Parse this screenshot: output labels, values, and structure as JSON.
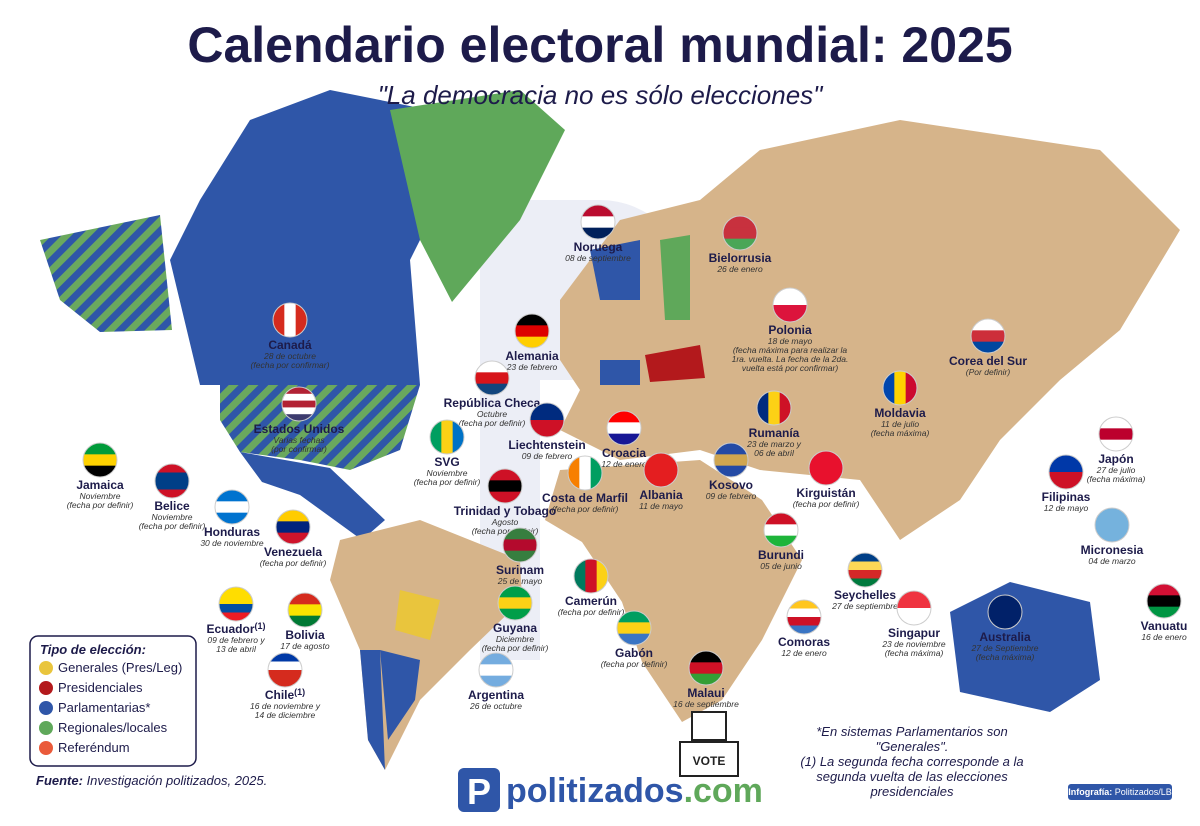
{
  "header": {
    "title": "Calendario electoral mundial: 2025",
    "subtitle": "\"La democracia no es sólo elecciones\""
  },
  "countries": [
    {
      "name": "Noruega",
      "details": [
        "08 de septiembre"
      ]
    },
    {
      "name": "Bielorrusia",
      "details": [
        "26 de enero"
      ]
    },
    {
      "name": "Polonia",
      "details": [
        "18 de mayo",
        "(fecha máxima para realizar la",
        "1ra. vuelta. La fecha de la 2da.",
        "vuelta está por confirmar)"
      ]
    },
    {
      "name": "Alemania",
      "details": [
        "23 de febrero"
      ]
    },
    {
      "name": "República Checa",
      "details": [
        "Octubre",
        "(fecha por definir)"
      ]
    },
    {
      "name": "Canadá",
      "details": [
        "28 de octubre",
        "(fecha por confirmar)"
      ]
    },
    {
      "name": "Estados Unidos",
      "details": [
        "Varias fechas",
        "(por confirmar)"
      ]
    },
    {
      "name": "Corea del Sur",
      "details": [
        "(Por definir)"
      ]
    },
    {
      "name": "Moldavia",
      "details": [
        "11 de julio",
        "(fecha máxima)"
      ]
    },
    {
      "name": "Liechtenstein",
      "details": [
        "09 de febrero"
      ]
    },
    {
      "name": "Croacia",
      "details": [
        "12 de enero"
      ]
    },
    {
      "name": "Rumanía",
      "details": [
        "23 de marzo y",
        "06 de abril"
      ]
    },
    {
      "name": "SVG",
      "details": [
        "Noviembre",
        "(fecha por definir)"
      ]
    },
    {
      "name": "Jamaica",
      "details": [
        "Noviembre",
        "(fecha por definir)"
      ]
    },
    {
      "name": "Belice",
      "details": [
        "Noviembre",
        "(fecha por definir)"
      ]
    },
    {
      "name": "Honduras",
      "details": [
        "30 de noviembre"
      ]
    },
    {
      "name": "Venezuela",
      "details": [
        "(fecha por definir)"
      ]
    },
    {
      "name": "Trinidad y Tobago",
      "details": [
        "Agosto",
        "(fecha por definir)"
      ]
    },
    {
      "name": "Costa de Marfil",
      "details": [
        "(fecha por definir)"
      ]
    },
    {
      "name": "Albania",
      "details": [
        "11 de mayo"
      ]
    },
    {
      "name": "Kosovo",
      "details": [
        "09 de febrero"
      ]
    },
    {
      "name": "Kirguistán",
      "details": [
        "(fecha por definir)"
      ]
    },
    {
      "name": "Japón",
      "details": [
        "27 de julio",
        "(fecha máxima)"
      ]
    },
    {
      "name": "Filipinas",
      "details": [
        "12 de mayo"
      ]
    },
    {
      "name": "Micronesia",
      "details": [
        "04 de marzo"
      ]
    },
    {
      "name": "Burundi",
      "details": [
        "05 de junio"
      ]
    },
    {
      "name": "Surinam",
      "details": [
        "25 de mayo"
      ]
    },
    {
      "name": "Ecuador",
      "note_mark": "(1)",
      "details": [
        "09 de febrero y",
        "13 de abril"
      ]
    },
    {
      "name": "Bolivia",
      "details": [
        "17 de agosto"
      ]
    },
    {
      "name": "Guyana",
      "details": [
        "Diciembre",
        "(fecha por definir)"
      ]
    },
    {
      "name": "Camerún",
      "details": [
        "(fecha por definir)"
      ]
    },
    {
      "name": "Seychelles",
      "details": [
        "27 de septiembre"
      ]
    },
    {
      "name": "Gabón",
      "details": [
        "(fecha por definir)"
      ]
    },
    {
      "name": "Comoras",
      "details": [
        "12 de enero"
      ]
    },
    {
      "name": "Singapur",
      "details": [
        "23 de noviembre",
        "(fecha máxima)"
      ]
    },
    {
      "name": "Australia",
      "details": [
        "27 de Septiembre",
        "(fecha máxima)"
      ]
    },
    {
      "name": "Vanuatu",
      "details": [
        "16 de enero"
      ]
    },
    {
      "name": "Chile",
      "note_mark": "(1)",
      "details": [
        "16 de noviembre y",
        "14 de diciembre"
      ]
    },
    {
      "name": "Argentina",
      "details": [
        "26 de octubre"
      ]
    },
    {
      "name": "Malaui",
      "details": [
        "16 de septiembre"
      ]
    }
  ],
  "legend": {
    "title": "Tipo de elección:",
    "items": [
      {
        "name": "Generales (Pres/Leg)",
        "color": "#e9c53d"
      },
      {
        "name": "Presidenciales",
        "color": "#b3191c"
      },
      {
        "name": "Parlamentarias*",
        "color": "#2f56a8"
      },
      {
        "name": "Regionales/locales",
        "color": "#5fa85a"
      },
      {
        "name": "Referéndum",
        "color": "#ea5a3a"
      }
    ]
  },
  "footnotes": [
    "*En sistemas Parlamentarios son",
    "\"Generales\".",
    "(1) La segunda fecha corresponde a  la",
    "segunda vuelta de las elecciones",
    "presidenciales"
  ],
  "source": {
    "label": "Fuente:",
    "text": " Investigación politizados, 2025."
  },
  "brand": {
    "name": "politizados",
    "domain": ".com"
  },
  "ballot": "VOTE",
  "credit": {
    "label": "Infografía:",
    "text": " Politizados/LB"
  }
}
